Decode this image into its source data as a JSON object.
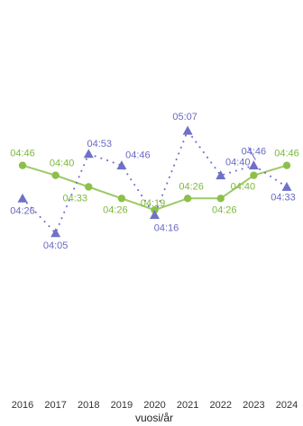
{
  "chart_data": {
    "type": "line",
    "xlabel": "vuosi/år",
    "categories": [
      "2016",
      "2017",
      "2018",
      "2019",
      "2020",
      "2021",
      "2022",
      "2023",
      "2024"
    ],
    "y_unit": "minutes:seconds",
    "ylim": [
      "03:00",
      "06:00"
    ],
    "grid": false,
    "legend": "none",
    "series": [
      {
        "color": "#8cc04a",
        "line_style": "solid",
        "marker": "circle",
        "values": [
          "04:46",
          "04:40",
          "04:33",
          "04:26",
          "04:19",
          "04:26",
          "04:26",
          "04:40",
          "04:46"
        ]
      },
      {
        "color": "#7070c8",
        "line_style": "dotted",
        "marker": "triangle",
        "values": [
          "04:26",
          "04:05",
          "04:53",
          "04:46",
          "04:16",
          "05:07",
          "04:40",
          "04:46",
          "04:33"
        ]
      }
    ]
  }
}
